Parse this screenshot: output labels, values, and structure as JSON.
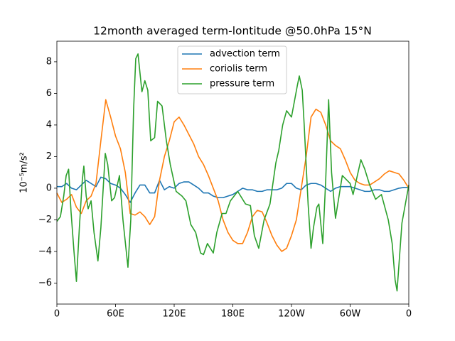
{
  "chart_data": {
    "type": "line",
    "title": "12month averaged term-lontitude @50.0hPa 15°N",
    "y_label": "10⁻⁵m/s²",
    "x": [
      0,
      5,
      10,
      15,
      20,
      25,
      30,
      35,
      40,
      45,
      50,
      55,
      60,
      65,
      70,
      75,
      80,
      85,
      90,
      95,
      100,
      105,
      110,
      115,
      120,
      125,
      130,
      135,
      140,
      145,
      150,
      155,
      160,
      165,
      170,
      175,
      180,
      185,
      190,
      195,
      200,
      205,
      210,
      215,
      220,
      225,
      230,
      235,
      240,
      245,
      250,
      255,
      260,
      265,
      270,
      275,
      280,
      285,
      290,
      295,
      300,
      305,
      310,
      315,
      320,
      325,
      330,
      335,
      340,
      345,
      350,
      355,
      360
    ],
    "series": [
      {
        "name": "advection term",
        "color": "#1f77b4",
        "values": [
          0.1,
          0.1,
          0.3,
          0.0,
          -0.1,
          0.2,
          0.5,
          0.3,
          0.1,
          0.7,
          0.6,
          0.3,
          0.2,
          0.0,
          -0.4,
          -0.9,
          -0.3,
          0.2,
          0.2,
          -0.3,
          -0.3,
          0.5,
          -0.1,
          0.1,
          0.0,
          0.3,
          0.4,
          0.4,
          0.2,
          0.0,
          -0.3,
          -0.3,
          -0.5,
          -0.6,
          -0.6,
          -0.5,
          -0.4,
          -0.2,
          0.0,
          -0.1,
          -0.1,
          -0.2,
          -0.2,
          -0.1,
          -0.1,
          -0.1,
          0.0,
          0.3,
          0.3,
          0.0,
          -0.1,
          0.2,
          0.3,
          0.3,
          0.2,
          0.0,
          -0.2,
          0.0,
          0.1,
          0.1,
          0.1,
          0.0,
          -0.1,
          -0.2,
          -0.2,
          -0.1,
          -0.1,
          -0.2,
          -0.2,
          -0.1,
          0.0,
          0.05,
          0.05
        ]
      },
      {
        "name": "coriolis term",
        "color": "#ff7f0e",
        "values": [
          -0.3,
          -0.9,
          -0.7,
          -0.4,
          -1.2,
          -1.6,
          -0.8,
          -0.5,
          0.3,
          3.0,
          5.6,
          4.5,
          3.3,
          2.5,
          1.0,
          -1.6,
          -1.7,
          -1.5,
          -1.8,
          -2.3,
          -1.8,
          0.5,
          2.0,
          3.0,
          4.2,
          4.5,
          4.0,
          3.4,
          2.8,
          2.0,
          1.5,
          0.8,
          0.0,
          -0.8,
          -2.0,
          -2.8,
          -3.3,
          -3.5,
          -3.5,
          -2.8,
          -1.8,
          -1.4,
          -1.5,
          -2.2,
          -3.0,
          -3.6,
          -4.0,
          -3.8,
          -3.0,
          -2.0,
          0.0,
          2.0,
          4.5,
          5.0,
          4.8,
          4.0,
          3.0,
          2.7,
          2.5,
          1.8,
          1.0,
          0.5,
          0.3,
          0.2,
          0.2,
          0.4,
          0.6,
          0.9,
          1.1,
          1.0,
          0.9,
          0.5,
          0.0
        ]
      },
      {
        "name": "pressure term",
        "color": "#2ca02c",
        "x": [
          0,
          3.6,
          7,
          9.5,
          12,
          14.5,
          17.5,
          20,
          23,
          26,
          27.6,
          30,
          32,
          35,
          38,
          42,
          45,
          49.5,
          52,
          56,
          59,
          64,
          67.6,
          72.7,
          75.6,
          78.5,
          80.7,
          83,
          87,
          90,
          93,
          96,
          100,
          103,
          107.6,
          112,
          116,
          122,
          128,
          132,
          137,
          142,
          147,
          150,
          154,
          160,
          163.6,
          169,
          173,
          177.5,
          185,
          193,
          198,
          202,
          206.5,
          212,
          218,
          224,
          227,
          231,
          235,
          240,
          246,
          248,
          251,
          253,
          257,
          260,
          262.5,
          266,
          268,
          272,
          275,
          278,
          281,
          285,
          292,
          300,
          303,
          311,
          315,
          320,
          326,
          332,
          339,
          343,
          346,
          348,
          353,
          360
        ],
        "values": [
          -2.1,
          -1.8,
          -0.5,
          0.8,
          1.2,
          -1.5,
          -4.0,
          -5.9,
          -2.5,
          0.5,
          1.4,
          -0.5,
          -1.3,
          -0.8,
          -2.8,
          -4.6,
          -2.5,
          2.2,
          1.5,
          -0.8,
          -0.6,
          0.8,
          -2,
          -5,
          -2,
          5,
          8.2,
          8.5,
          6.1,
          6.8,
          6.2,
          3,
          3.2,
          5.5,
          5.2,
          3,
          1.5,
          -0.2,
          -0.5,
          -0.8,
          -2.3,
          -2.8,
          -4.1,
          -4.2,
          -3.5,
          -4.1,
          -2.8,
          -1.6,
          -1.6,
          -0.8,
          -0.2,
          -1.0,
          -1.1,
          -3.0,
          -3.8,
          -2.0,
          -1.0,
          1.6,
          2.4,
          4.0,
          4.9,
          4.5,
          6.5,
          7.1,
          6.2,
          4,
          -1.0,
          -3.8,
          -2.5,
          -1.2,
          -1,
          -3.5,
          0.5,
          5.6,
          1,
          -1.9,
          0.8,
          0.3,
          -0.4,
          1.8,
          1.2,
          0.2,
          -0.7,
          -0.4,
          -2.0,
          -3.5,
          -5.8,
          -6.5,
          -2.2,
          0.2
        ]
      }
    ],
    "xlim": [
      0,
      360
    ],
    "xticks": [
      0,
      {
        "value": 60,
        "label": "60E"
      },
      {
        "value": 120,
        "label": "120E"
      },
      {
        "value": 180,
        "label": "180E"
      },
      {
        "value": 240,
        "label": "120W"
      },
      {
        "value": 300,
        "label": "60W"
      },
      {
        "value": 360,
        "label": "0"
      }
    ],
    "ylim": [
      -7.33,
      9.3
    ],
    "yticks": [
      {
        "value": -6,
        "label": "−6"
      },
      {
        "value": -4,
        "label": "−4"
      },
      {
        "value": -2,
        "label": "−2"
      },
      0,
      2,
      4,
      6,
      8
    ],
    "grid": false,
    "legend": "upper center"
  }
}
